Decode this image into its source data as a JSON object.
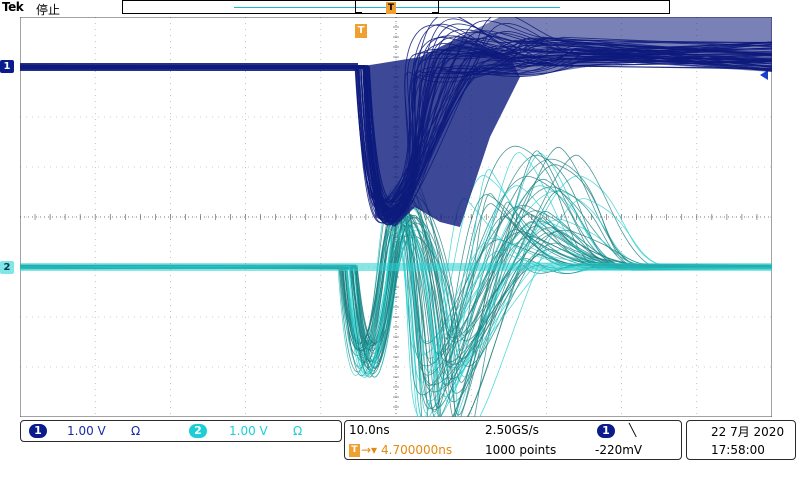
{
  "header": {
    "brand": "Tek",
    "run_state": "停止",
    "trigger_marker_label": "T"
  },
  "channels": [
    {
      "id": "1",
      "color": "#0a1b8c",
      "scale": "1.00 V",
      "coupling": "Ω"
    },
    {
      "id": "2",
      "color": "#1ccfd6",
      "scale": "1.00 V",
      "coupling": "Ω"
    }
  ],
  "trace_colors": {
    "ch1": "#0d1a7c",
    "ch2_dim": "#1e7f80",
    "ch2_bright": "#2ad0d0"
  },
  "acquisition": {
    "timebase": "10.0ns",
    "trigger_position": "4.700000ns",
    "sample_rate": "2.50GS/s",
    "record_length": "1000 points",
    "trigger_source": "1",
    "trigger_slope": "╲",
    "trigger_level": "-220mV"
  },
  "datetime": {
    "date": "22 7月 2020",
    "time": "17:58:00"
  }
}
